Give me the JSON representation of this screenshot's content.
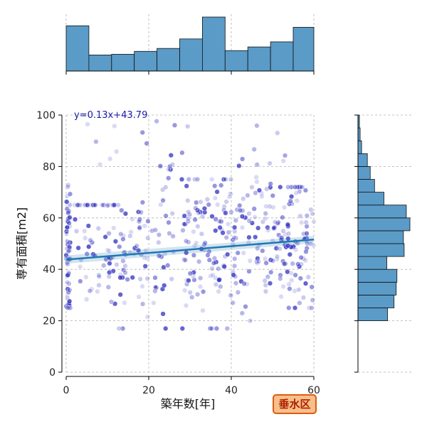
{
  "chart_data": {
    "type": "scatter",
    "xlabel": "築年数[年]",
    "ylabel": "専有面積[m2]",
    "xlim": [
      0,
      60
    ],
    "ylim": [
      0,
      100
    ],
    "x_ticks": [
      0,
      20,
      40,
      60
    ],
    "y_ticks": [
      0,
      20,
      40,
      60,
      80,
      100
    ],
    "grid": true,
    "regression": {
      "label": "y=0.13x+43.79",
      "slope": 0.13,
      "intercept": 43.79
    },
    "badge": "垂水区",
    "marginal_x_hist": {
      "bin_edges": [
        0,
        5.5,
        11,
        16.5,
        22,
        27.5,
        33,
        38.5,
        44,
        49.5,
        55,
        60
      ],
      "counts": [
        62,
        22,
        23,
        27,
        31,
        44,
        74,
        28,
        33,
        40,
        60
      ]
    },
    "marginal_y_hist": {
      "bin_edges": [
        20,
        25,
        30,
        35,
        40,
        45,
        50,
        55,
        60,
        65,
        70,
        75,
        80,
        85,
        90,
        95,
        100
      ],
      "counts": [
        41,
        50,
        53,
        54,
        40,
        64,
        63,
        72,
        67,
        36,
        23,
        17,
        13,
        5,
        3,
        2
      ]
    },
    "colors": {
      "points": "#3030c0",
      "regression": "#1f77b4",
      "histogram": "#5a9bc8",
      "badge_fill": "#f6c08a",
      "badge_border": "#e05a10"
    }
  }
}
